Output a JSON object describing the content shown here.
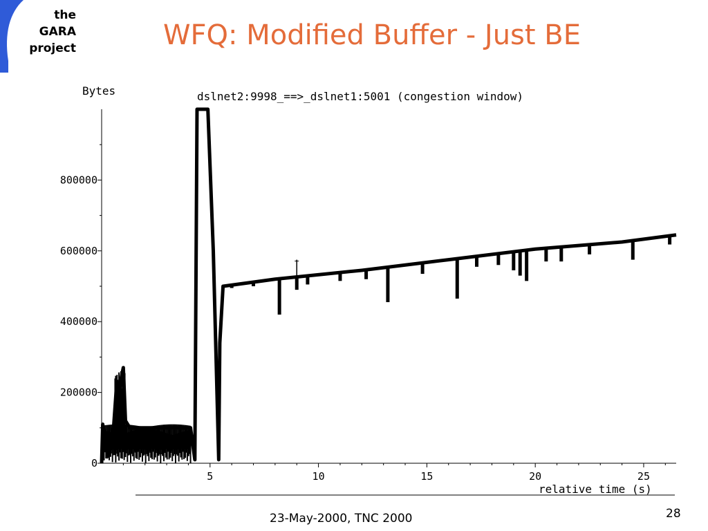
{
  "logo": {
    "line1": "the",
    "line2": "GARA",
    "line3": "project",
    "arc_color": "#2f5bd8"
  },
  "slide": {
    "title": "WFQ: Modified Buffer - Just BE",
    "footer": "23-May-2000, TNC 2000",
    "page_number": "28",
    "title_color": "#e46c3a"
  },
  "chart_data": {
    "type": "line",
    "title": "dslnet2:9998_==>_dslnet1:5001 (congestion window)",
    "xlabel": "relative time (s)",
    "ylabel": "Bytes",
    "xlim": [
      0,
      26.5
    ],
    "ylim": [
      0,
      1000000
    ],
    "x_ticks": [
      5,
      10,
      15,
      20,
      25
    ],
    "x_tick_labels": [
      "5",
      "10",
      "15",
      "20",
      "25"
    ],
    "y_ticks": [
      0,
      200000,
      400000,
      600000,
      800000
    ],
    "y_tick_labels": [
      "0",
      "200000",
      "400000",
      "600000",
      "800000"
    ],
    "grid": false,
    "line_color": "#000000",
    "series": [
      {
        "points": [
          [
            0,
            0
          ],
          [
            0.05,
            110000
          ],
          [
            0.3,
            20000
          ],
          [
            0.55,
            100000
          ],
          [
            0.7,
            230000
          ],
          [
            0.8,
            150000
          ],
          [
            0.9,
            240000
          ],
          [
            1.0,
            270000
          ],
          [
            1.1,
            120000
          ],
          [
            1.3,
            100000
          ],
          [
            2.0,
            100000
          ],
          [
            3.0,
            100000
          ],
          [
            4.1,
            100000
          ],
          [
            4.3,
            10000
          ],
          [
            4.4,
            1000000
          ],
          [
            4.9,
            1000000
          ],
          [
            5.15,
            600000
          ],
          [
            5.4,
            10000
          ],
          [
            5.45,
            340000
          ],
          [
            5.6,
            500000
          ],
          [
            8.0,
            520000
          ],
          [
            12.0,
            545000
          ],
          [
            16.0,
            575000
          ],
          [
            20.0,
            605000
          ],
          [
            24.0,
            625000
          ],
          [
            26.5,
            645000
          ]
        ]
      }
    ],
    "dips": [
      [
        6.0,
        495000
      ],
      [
        7.0,
        500000
      ],
      [
        8.2,
        420000
      ],
      [
        9.0,
        490000
      ],
      [
        9.5,
        505000
      ],
      [
        11.0,
        515000
      ],
      [
        12.2,
        520000
      ],
      [
        13.2,
        455000
      ],
      [
        14.8,
        535000
      ],
      [
        16.4,
        465000
      ],
      [
        17.3,
        555000
      ],
      [
        18.3,
        560000
      ],
      [
        19.0,
        545000
      ],
      [
        19.3,
        530000
      ],
      [
        19.6,
        515000
      ],
      [
        20.5,
        570000
      ],
      [
        21.2,
        570000
      ],
      [
        22.5,
        590000
      ],
      [
        24.5,
        575000
      ],
      [
        26.2,
        618000
      ]
    ],
    "spike": [
      9.0,
      575000
    ]
  }
}
